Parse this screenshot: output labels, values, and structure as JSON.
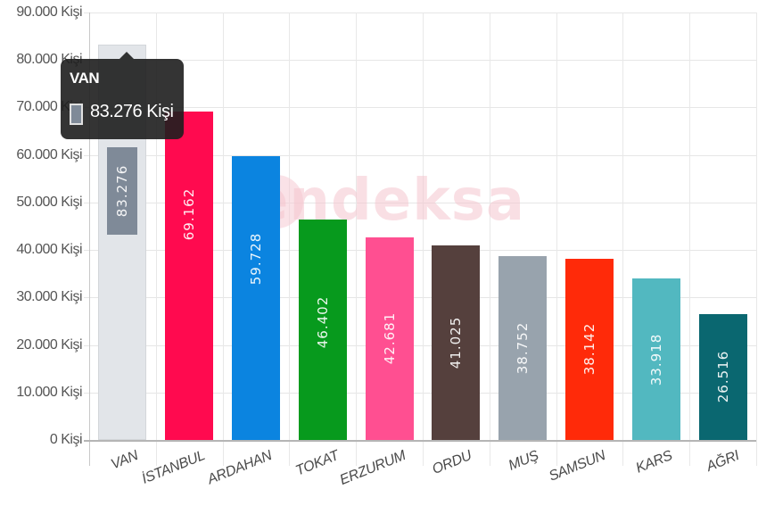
{
  "chart_data": {
    "type": "bar",
    "title": "",
    "xlabel": "",
    "ylabel": "",
    "ylim": [
      0,
      90000
    ],
    "grid": true,
    "legend": "none",
    "categories": [
      "VAN",
      "İSTANBUL",
      "ARDAHAN",
      "TOKAT",
      "ERZURUM",
      "ORDU",
      "MUŞ",
      "SAMSUN",
      "KARS",
      "AĞRI"
    ],
    "values": [
      83276,
      69162,
      59728,
      46402,
      42681,
      41025,
      38752,
      38142,
      33918,
      26516
    ],
    "value_labels": [
      "83.276",
      "69.162",
      "59.728",
      "46.402",
      "42.681",
      "41.025",
      "38.752",
      "38.142",
      "33.918",
      "26.516"
    ],
    "colors": [
      "#e2e5e9",
      "#ff0a4f",
      "#0b84e0",
      "#079a1d",
      "#ff4f91",
      "#55403d",
      "#98a3ad",
      "#ff2a09",
      "#52b8c0",
      "#0a6770"
    ],
    "y_ticks": [
      "0 Kişi",
      "10.000 Kişi",
      "20.000 Kişi",
      "30.000 Kişi",
      "40.000 Kişi",
      "50.000 Kişi",
      "60.000 Kişi",
      "70.000 Kişi",
      "80.000 Kişi",
      "90.000 Kişi"
    ],
    "y_tick_values": [
      0,
      10000,
      20000,
      30000,
      40000,
      50000,
      60000,
      70000,
      80000,
      90000
    ],
    "annotations": [
      "endeksa (watermark)"
    ]
  },
  "tooltip": {
    "title": "VAN",
    "value": "83.276 Kişi",
    "swatch_color": "#7f8a98"
  },
  "watermark": "endeksa"
}
